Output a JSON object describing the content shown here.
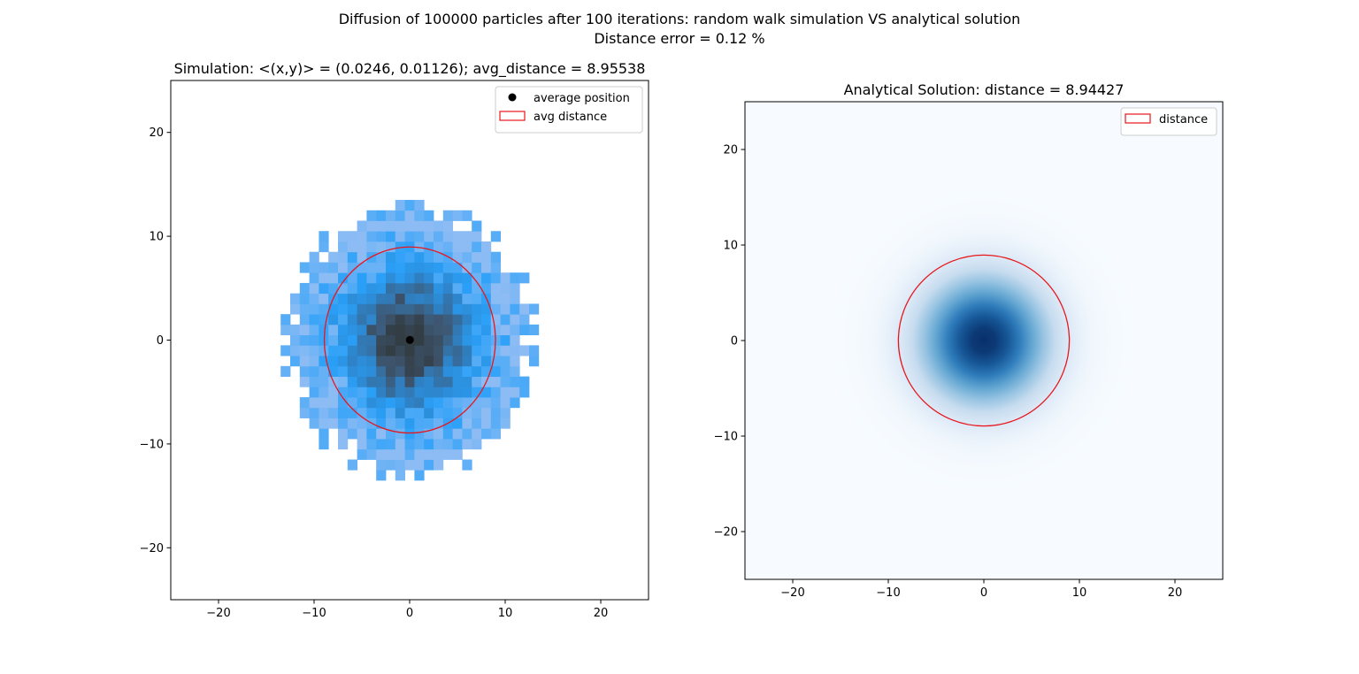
{
  "figure": {
    "suptitle_line1": "Diffusion of 100000 particles after 100 iterations: random walk simulation VS analytical solution",
    "suptitle_line2": "Distance error = 0.12 %"
  },
  "chart_data": [
    {
      "type": "heatmap",
      "title": "Simulation: <(x,y)> = (0.0246, 0.01126); avg_distance = 8.95538",
      "xlabel": "",
      "ylabel": "",
      "xlim": [
        -25,
        25
      ],
      "ylim": [
        -25,
        25
      ],
      "xticks": [
        -20,
        -10,
        0,
        10,
        20
      ],
      "yticks": [
        -20,
        -10,
        0,
        10,
        20
      ],
      "xtick_labels": [
        "−20",
        "−10",
        "0",
        "10",
        "20"
      ],
      "ytick_labels": [
        "−20",
        "−10",
        "0",
        "10",
        "20"
      ],
      "grid": false,
      "bin_size": 1,
      "histogram_extent": {
        "x": [
          -13.5,
          13.5
        ],
        "y": [
          -13.5,
          13.5
        ]
      },
      "colormap": [
        "#8dbcf4",
        "#2aa0f8",
        "#2e83c8",
        "#3e5670",
        "#333d44"
      ],
      "average_position": {
        "x": 0.0246,
        "y": 0.01126,
        "color": "#000000"
      },
      "avg_distance": 8.95538,
      "circle_color": "#e8161b",
      "legend": {
        "position": "top-right",
        "entries": [
          {
            "label": "average position",
            "marker": "dot",
            "color": "#000000"
          },
          {
            "label": "avg distance",
            "marker": "rect-outline",
            "color": "#e8161b"
          }
        ]
      }
    },
    {
      "type": "heatmap",
      "title": "Analytical Solution: distance = 8.94427",
      "xlabel": "",
      "ylabel": "",
      "xlim": [
        -25,
        25
      ],
      "ylim": [
        -25,
        25
      ],
      "xticks": [
        -20,
        -10,
        0,
        10,
        20
      ],
      "yticks": [
        -20,
        -10,
        0,
        10,
        20
      ],
      "xtick_labels": [
        "−20",
        "−10",
        "0",
        "10",
        "20"
      ],
      "ytick_labels": [
        "−20",
        "−10",
        "0",
        "10",
        "20"
      ],
      "grid": false,
      "colormap_name": "Blues",
      "colormap": [
        "#f7fbff",
        "#c6dbef",
        "#6baed6",
        "#2171b5",
        "#08306b"
      ],
      "center": {
        "x": 0,
        "y": 0
      },
      "distance": 8.94427,
      "circle_color": "#e8161b",
      "legend": {
        "position": "top-right",
        "entries": [
          {
            "label": "distance",
            "marker": "rect-outline",
            "color": "#e8161b"
          }
        ]
      }
    }
  ]
}
